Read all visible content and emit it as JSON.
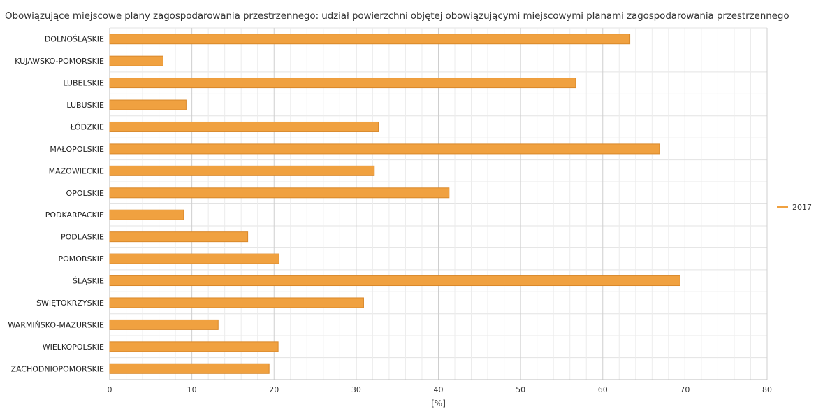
{
  "chart_data": {
    "type": "bar",
    "orientation": "horizontal",
    "title": "Obowiązujące miejscowe plany zagospodarowania przestrzennego: udział powierzchni objętej obowiązującymi miejscowymi planami zagospodarowania przestrzennego",
    "categories": [
      "DOLNOŚLĄSKIE",
      "KUJAWSKO-POMORSKIE",
      "LUBELSKIE",
      "LUBUSKIE",
      "ŁÓDZKIE",
      "MAŁOPOLSKIE",
      "MAZOWIECKIE",
      "OPOLSKIE",
      "PODKARPACKIE",
      "PODLASKIE",
      "POMORSKIE",
      "ŚLĄSKIE",
      "ŚWIĘTOKRZYSKIE",
      "WARMIŃSKO-MAZURSKIE",
      "WIELKOPOLSKIE",
      "ZACHODNIOPOMORSKIE"
    ],
    "series": [
      {
        "name": "2017",
        "color": "#f0a140",
        "values": [
          63.3,
          6.5,
          56.7,
          9.3,
          32.7,
          66.9,
          32.2,
          41.3,
          9.0,
          16.8,
          20.6,
          69.4,
          30.9,
          13.2,
          20.5,
          19.4
        ]
      }
    ],
    "xlabel": "[%]",
    "ylabel": "",
    "xlim": [
      0,
      80
    ],
    "xticks": [
      0,
      10,
      20,
      30,
      40,
      50,
      60,
      70,
      80
    ],
    "grid": true,
    "legend_position": "right"
  }
}
